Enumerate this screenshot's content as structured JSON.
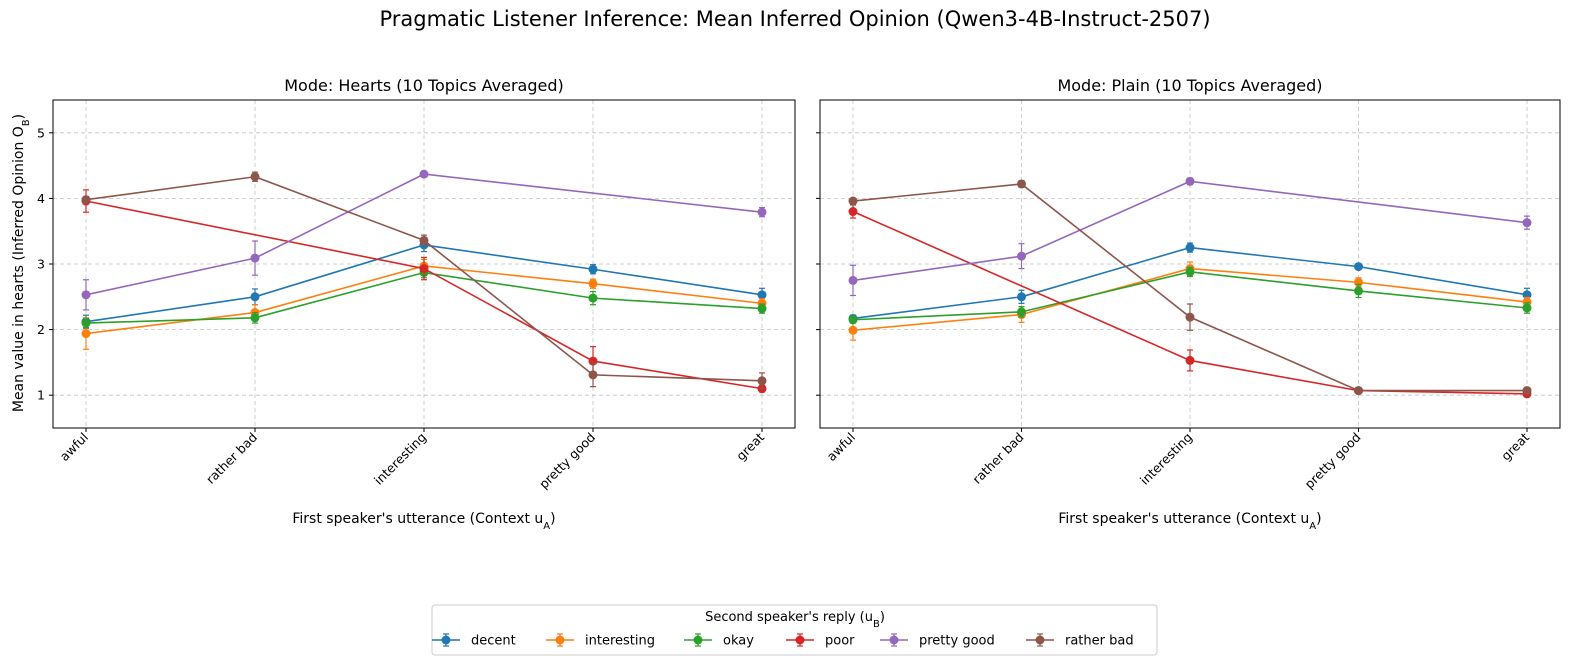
{
  "title": "Pragmatic Listener Inference: Mean Inferred Opinion (Qwen3-4B-Instruct-2507)",
  "ylabel_text": "Mean value in hearts (Inferred Opinion O",
  "ylabel_sub": "B",
  "ylabel_close": ")",
  "xlabel_text": "First speaker's utterance (Context u",
  "xlabel_sub": "A",
  "xlabel_close": ")",
  "legend": {
    "title_text": "Second speaker's reply (u",
    "title_sub": "B",
    "title_close": ")",
    "placement": "bottom-center"
  },
  "chart_data": [
    {
      "type": "line",
      "title": "Mode: Hearts (10 Topics Averaged)",
      "categories": [
        "awful",
        "rather bad",
        "interesting",
        "pretty good",
        "great"
      ],
      "ylim": [
        0.5,
        5.5
      ],
      "yticks": [
        1,
        2,
        3,
        4,
        5
      ],
      "grid": true,
      "series": [
        {
          "name": "decent",
          "color": "#1f77b4",
          "x": [
            "awful",
            "rather bad",
            "interesting",
            "pretty good",
            "great"
          ],
          "values": [
            2.12,
            2.5,
            3.29,
            2.92,
            2.53
          ],
          "errors": [
            0.1,
            0.12,
            0.1,
            0.07,
            0.1
          ]
        },
        {
          "name": "interesting",
          "color": "#ff7f0e",
          "x": [
            "awful",
            "rather bad",
            "interesting",
            "pretty good",
            "great"
          ],
          "values": [
            1.94,
            2.26,
            2.97,
            2.7,
            2.4
          ],
          "errors": [
            0.24,
            0.12,
            0.1,
            0.07,
            0.07
          ]
        },
        {
          "name": "okay",
          "color": "#2ca02c",
          "x": [
            "awful",
            "rather bad",
            "interesting",
            "pretty good",
            "great"
          ],
          "values": [
            2.1,
            2.18,
            2.87,
            2.48,
            2.32
          ],
          "errors": [
            0.07,
            0.08,
            0.08,
            0.1,
            0.07
          ]
        },
        {
          "name": "poor",
          "color": "#d62728",
          "x": [
            "awful",
            "interesting",
            "pretty good",
            "great"
          ],
          "values": [
            3.96,
            2.93,
            1.52,
            1.1
          ],
          "errors": [
            0.17,
            0.17,
            0.22,
            0.05
          ]
        },
        {
          "name": "pretty good",
          "color": "#9467bd",
          "x": [
            "awful",
            "rather bad",
            "interesting",
            "great"
          ],
          "values": [
            2.53,
            3.09,
            4.37,
            3.79
          ],
          "errors": [
            0.23,
            0.26,
            0.04,
            0.07
          ]
        },
        {
          "name": "rather bad",
          "color": "#8c564b",
          "x": [
            "awful",
            "rather bad",
            "interesting",
            "pretty good",
            "great"
          ],
          "values": [
            3.98,
            4.33,
            3.36,
            1.31,
            1.22
          ],
          "errors": [
            0.05,
            0.07,
            0.08,
            0.18,
            0.12
          ]
        }
      ]
    },
    {
      "type": "line",
      "title": "Mode: Plain (10 Topics Averaged)",
      "categories": [
        "awful",
        "rather bad",
        "interesting",
        "pretty good",
        "great"
      ],
      "ylim": [
        0.5,
        5.5
      ],
      "yticks": [
        1,
        2,
        3,
        4,
        5
      ],
      "grid": true,
      "series": [
        {
          "name": "decent",
          "color": "#1f77b4",
          "x": [
            "awful",
            "rather bad",
            "interesting",
            "pretty good",
            "great"
          ],
          "values": [
            2.17,
            2.5,
            3.25,
            2.96,
            2.53
          ],
          "errors": [
            0.05,
            0.1,
            0.07,
            0.04,
            0.1
          ]
        },
        {
          "name": "interesting",
          "color": "#ff7f0e",
          "x": [
            "awful",
            "rather bad",
            "interesting",
            "pretty good",
            "great"
          ],
          "values": [
            1.99,
            2.23,
            2.93,
            2.72,
            2.42
          ],
          "errors": [
            0.15,
            0.12,
            0.1,
            0.07,
            0.07
          ]
        },
        {
          "name": "okay",
          "color": "#2ca02c",
          "x": [
            "awful",
            "rather bad",
            "interesting",
            "pretty good",
            "great"
          ],
          "values": [
            2.15,
            2.27,
            2.88,
            2.59,
            2.33
          ],
          "errors": [
            0.05,
            0.08,
            0.07,
            0.1,
            0.08
          ]
        },
        {
          "name": "poor",
          "color": "#d62728",
          "x": [
            "awful",
            "interesting",
            "pretty good",
            "great"
          ],
          "values": [
            3.8,
            1.53,
            1.07,
            1.02
          ],
          "errors": [
            0.1,
            0.16,
            0.04,
            0.04
          ]
        },
        {
          "name": "pretty good",
          "color": "#9467bd",
          "x": [
            "awful",
            "rather bad",
            "interesting",
            "great"
          ],
          "values": [
            2.75,
            3.12,
            4.26,
            3.63
          ],
          "errors": [
            0.23,
            0.19,
            0.05,
            0.1
          ]
        },
        {
          "name": "rather bad",
          "color": "#8c564b",
          "x": [
            "awful",
            "rather bad",
            "interesting",
            "pretty good",
            "great"
          ],
          "values": [
            3.96,
            4.22,
            2.19,
            1.07,
            1.07
          ],
          "errors": [
            0.04,
            0.05,
            0.2,
            0.04,
            0.04
          ]
        }
      ]
    }
  ]
}
